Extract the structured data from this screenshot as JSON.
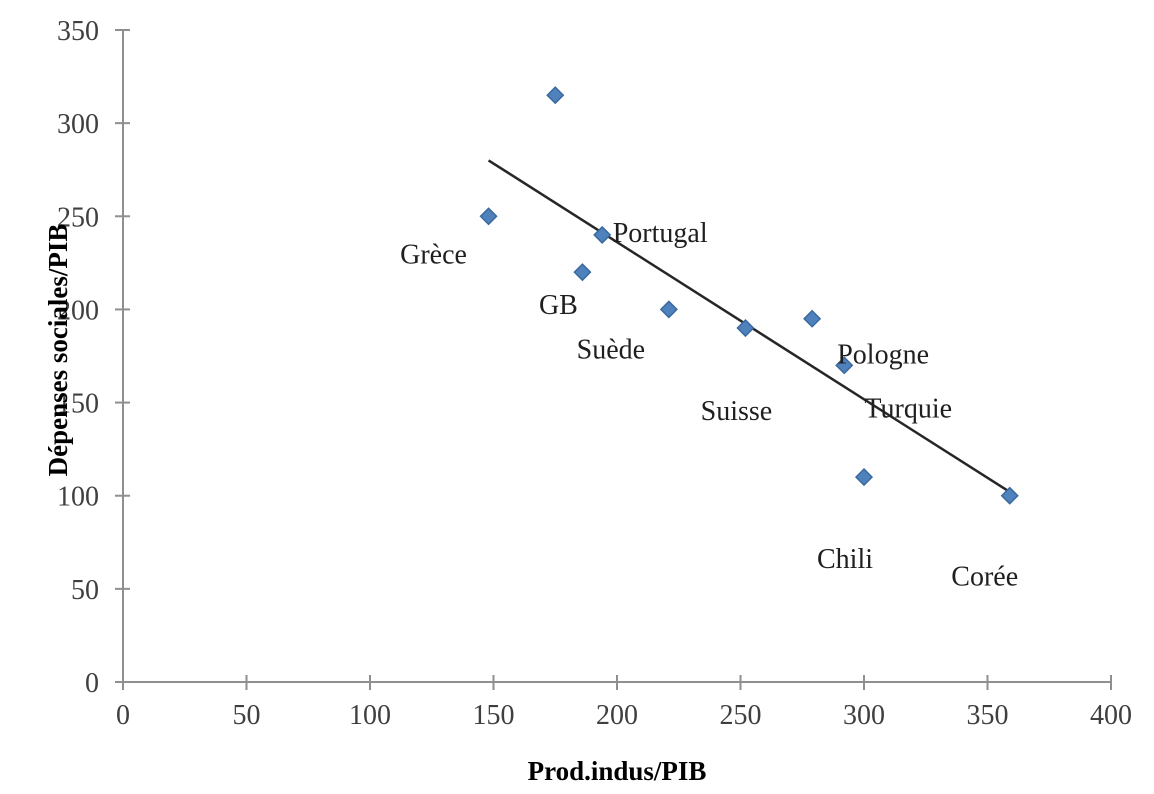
{
  "chart_data": {
    "type": "scatter",
    "title": "",
    "xlabel": "Prod.indus/PIB",
    "ylabel": "Dépenses sociales/PIB",
    "xlim": [
      0,
      400
    ],
    "ylim": [
      0,
      350
    ],
    "xticks": [
      0,
      50,
      100,
      150,
      200,
      250,
      300,
      350,
      400
    ],
    "yticks": [
      0,
      50,
      100,
      150,
      200,
      250,
      300,
      350
    ],
    "grid": false,
    "legend": false,
    "marker": "diamond",
    "points": [
      {
        "label": "",
        "x": 175,
        "y": 315,
        "label_offset": [
          0,
          0
        ]
      },
      {
        "label": "Grèce",
        "x": 148,
        "y": 250,
        "label_offset": [
          -55,
          38
        ]
      },
      {
        "label": "Portugal",
        "x": 194,
        "y": 240,
        "label_offset": [
          58,
          -2
        ]
      },
      {
        "label": "GB",
        "x": 186,
        "y": 220,
        "label_offset": [
          -24,
          33
        ]
      },
      {
        "label": "Suède",
        "x": 221,
        "y": 200,
        "label_offset": [
          -58,
          40
        ]
      },
      {
        "label": "Suisse",
        "x": 252,
        "y": 190,
        "label_offset": [
          -9,
          83
        ]
      },
      {
        "label": "Pologne",
        "x": 279,
        "y": 195,
        "label_offset": [
          71,
          36
        ]
      },
      {
        "label": "Turquie",
        "x": 292,
        "y": 170,
        "label_offset": [
          64,
          43
        ]
      },
      {
        "label": "Chili",
        "x": 300,
        "y": 110,
        "label_offset": [
          -19,
          82
        ]
      },
      {
        "label": "Corée",
        "x": 359,
        "y": 100,
        "label_offset": [
          -25,
          81
        ]
      }
    ],
    "trendline": {
      "x1": 148,
      "y1": 280,
      "x2": 359,
      "y2": 102
    },
    "colors": {
      "marker_fill": "#4f81bd",
      "marker_border": "#3a6a9e",
      "trendline": "#262626",
      "axis_line": "#8f8f8f",
      "tick_text": "#3f3f3f",
      "label_text": "#1f1f1f",
      "background": "#ffffff"
    }
  }
}
